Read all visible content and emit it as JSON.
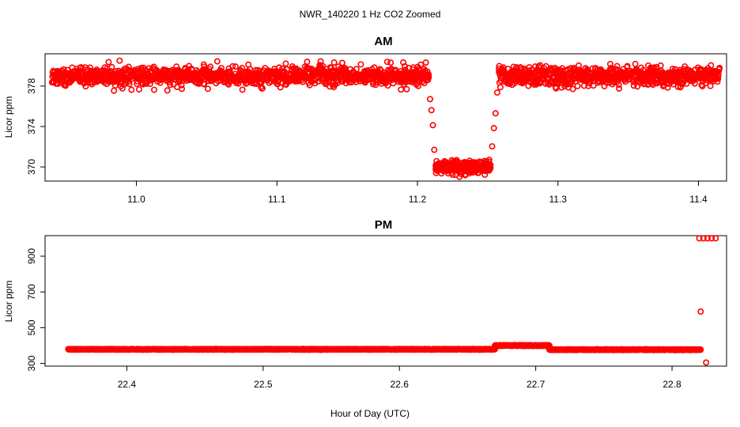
{
  "figure": {
    "title": "NWR_140220  1 Hz CO2 Zoomed",
    "xlabel": "Hour of Day (UTC)"
  },
  "chart_data": [
    {
      "type": "scatter",
      "title": "AM",
      "xlabel": "",
      "ylabel": "Licor ppm",
      "xlim": [
        10.935,
        11.42
      ],
      "ylim": [
        368.6,
        381.2
      ],
      "xticks": [
        11.0,
        11.1,
        11.2,
        11.3,
        11.4
      ],
      "xtick_labels": [
        "11.0",
        "11.1",
        "11.2",
        "11.3",
        "11.4"
      ],
      "yticks": [
        370,
        374,
        378
      ],
      "ytick_labels": [
        "370",
        "374",
        "378"
      ],
      "grid": false,
      "legend": "none",
      "marker": "open-circle",
      "color": "#ff0000",
      "segments": [
        {
          "x_start": 10.94,
          "x_end": 11.208,
          "center": 379.0,
          "spread": 0.8,
          "outlier_high": 380.6,
          "outlier_low": 377.5,
          "points": 1200
        },
        {
          "x_start": 11.208,
          "x_end": 11.213,
          "center": 375.5,
          "spread": 3.5,
          "points": 6
        },
        {
          "x_start": 11.213,
          "x_end": 11.252,
          "center": 370.0,
          "spread": 0.6,
          "outlier_low": 369.0,
          "points": 260
        },
        {
          "x_start": 11.252,
          "x_end": 11.258,
          "center": 376.0,
          "spread": 3.0,
          "points": 6
        },
        {
          "x_start": 11.258,
          "x_end": 11.415,
          "center": 379.0,
          "spread": 0.8,
          "outlier_low": 377.8,
          "points": 750
        }
      ]
    },
    {
      "type": "scatter",
      "title": "PM",
      "xlabel": "Hour of Day (UTC)",
      "ylabel": "Licor ppm",
      "xlim": [
        22.34,
        22.84
      ],
      "ylim": [
        285,
        1015
      ],
      "xticks": [
        22.4,
        22.5,
        22.6,
        22.7,
        22.8
      ],
      "xtick_labels": [
        "22.4",
        "22.5",
        "22.6",
        "22.7",
        "22.8"
      ],
      "yticks": [
        300,
        500,
        700,
        900
      ],
      "ytick_labels": [
        "300",
        "500",
        "700",
        "900"
      ],
      "grid": false,
      "legend": "none",
      "marker": "open-circle",
      "color": "#ff0000",
      "segments": [
        {
          "x_start": 22.357,
          "x_end": 22.67,
          "center": 379,
          "spread": 2,
          "points": 1200
        },
        {
          "x_start": 22.67,
          "x_end": 22.71,
          "center": 400,
          "spread": 2,
          "points": 260
        },
        {
          "x_start": 22.71,
          "x_end": 22.821,
          "center": 377,
          "spread": 2,
          "points": 440
        }
      ],
      "isolated_points": [
        {
          "x": 22.821,
          "y": 590
        },
        {
          "x": 22.825,
          "y": 305
        },
        {
          "x": 22.82,
          "y": 1000
        },
        {
          "x": 22.823,
          "y": 1000
        },
        {
          "x": 22.826,
          "y": 1000
        },
        {
          "x": 22.829,
          "y": 1000
        },
        {
          "x": 22.832,
          "y": 1000
        }
      ]
    }
  ]
}
